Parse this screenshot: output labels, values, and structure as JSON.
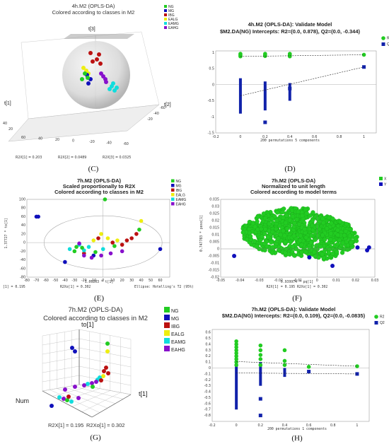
{
  "colors": {
    "NG": "#22cc22",
    "MG": "#1010bb",
    "IBG": "#bb1111",
    "EALG": "#eeee11",
    "EAMG": "#11dddd",
    "EAHG": "#8811cc",
    "R2": "#22cc22",
    "Q2": "#1122aa"
  },
  "classes": [
    "NG",
    "MG",
    "IBG",
    "EALG",
    "EAMG",
    "EAHG"
  ],
  "chart_data": [
    {
      "panel": "C",
      "type": "scatter",
      "title": "4h.M2 (OPLS-DA)",
      "subtitle": "Colored according to classes in M2",
      "axes": [
        "t[3]",
        "t[1]",
        "t[2]"
      ],
      "tick_labels_front": [
        "60",
        "40",
        "20",
        "0",
        "-20",
        "-40",
        "-60"
      ],
      "tick_labels_right": [
        "-20",
        "-40",
        "-60"
      ],
      "tick_labels_left": [
        "40",
        "20"
      ],
      "legend": [
        "NG",
        "MG",
        "IBG",
        "EALG",
        "EAMG",
        "EAHG"
      ],
      "footer": [
        "R2X[1] = 0.203",
        "R2X[2] = 0.0489",
        "R2X[3] = 0.0325"
      ],
      "caption": "(C)"
    },
    {
      "panel": "D",
      "type": "scatter",
      "title": "4h.M2 (OPLS-DA): Validate Model",
      "subtitle": "$M2.DA(NG) Intercepts: R2=(0.0, 0.878), Q2=(0.0, -0.344)",
      "xlim": [
        -0.2,
        1.1
      ],
      "ylim": [
        -1.5,
        1.05
      ],
      "xticks": [
        "-0.2",
        "0",
        "0.2",
        "0.4",
        "0.6",
        "0.8",
        "1"
      ],
      "yticks": [
        "1",
        "0.5",
        "0",
        "-0.5",
        "-1",
        "-1.5"
      ],
      "xlabel": "200 permutations 5 components",
      "legend": [
        "R2",
        "Q2"
      ],
      "R2_intercept_line": [
        [
          0,
          0.878
        ],
        [
          1,
          0.93
        ]
      ],
      "Q2_intercept_line": [
        [
          0,
          -0.344
        ],
        [
          1,
          0.55
        ]
      ],
      "R2_points": [
        [
          0,
          0.9
        ],
        [
          0,
          0.93
        ],
        [
          0,
          0.96
        ],
        [
          0,
          0.88
        ],
        [
          0.2,
          0.9
        ],
        [
          0.2,
          0.93
        ],
        [
          0.2,
          0.96
        ],
        [
          0.2,
          0.89
        ],
        [
          0.4,
          0.9
        ],
        [
          0.4,
          0.94
        ],
        [
          0.4,
          0.96
        ],
        [
          0.4,
          0.88
        ],
        [
          1,
          0.93
        ]
      ],
      "Q2_bars": [
        [
          0,
          -0.9,
          0.2
        ],
        [
          0.2,
          -0.8,
          0.1
        ],
        [
          0.4,
          -0.5,
          0.05
        ]
      ],
      "Q2_points": [
        [
          0.2,
          -1.17
        ],
        [
          0.4,
          -0.12
        ],
        [
          1,
          0.55
        ]
      ],
      "caption": "(D)"
    },
    {
      "panel": "E",
      "type": "scatter",
      "title": "7h.M2 (OPLS-DA)",
      "subtitle": "Scaled proportionally to R2X",
      "subtitle2": "Colored according to classes in M2",
      "xlim": [
        -80,
        70
      ],
      "ylim": [
        -80,
        100
      ],
      "xticks": [
        "-80",
        "-70",
        "-60",
        "-50",
        "-40",
        "-30",
        "-20",
        "-10",
        "0",
        "10",
        "20",
        "30",
        "40",
        "50",
        "60"
      ],
      "yticks": [
        "100",
        "80",
        "60",
        "40",
        "20",
        "0",
        "-20",
        "-40",
        "-60",
        "-80"
      ],
      "xlabel": "1.06203 * t[1]",
      "ylabel": "1.37727 * to[1]",
      "footer_left": "[1] = 0.195",
      "footer_mid": "R2Xo[1] = 0.302",
      "footer_right": "Ellipse: Hotelling's T2 (95%)",
      "legend": [
        "NG",
        "MG",
        "IBG",
        "EALG",
        "EAMG",
        "EAHG"
      ],
      "points": [
        [
          2,
          100,
          "NG"
        ],
        [
          -70,
          60,
          "MG"
        ],
        [
          -68,
          60,
          "MG"
        ],
        [
          -40,
          -45,
          "MG"
        ],
        [
          -10,
          -30,
          "MG"
        ],
        [
          60,
          -15,
          "MG"
        ],
        [
          -20,
          -25,
          "IBG"
        ],
        [
          25,
          5,
          "IBG"
        ],
        [
          30,
          10,
          "IBG"
        ],
        [
          35,
          20,
          "IBG"
        ],
        [
          -5,
          10,
          "IBG"
        ],
        [
          10,
          0,
          "IBG"
        ],
        [
          20,
          -5,
          "IBG"
        ],
        [
          40,
          50,
          "EALG"
        ],
        [
          -10,
          5,
          "EALG"
        ],
        [
          5,
          10,
          "EALG"
        ],
        [
          15,
          5,
          "EALG"
        ],
        [
          -2,
          20,
          "EALG"
        ],
        [
          -35,
          -15,
          "EAMG"
        ],
        [
          -25,
          -5,
          "EAMG"
        ],
        [
          -15,
          -10,
          "EAMG"
        ],
        [
          0,
          -15,
          "EAMG"
        ],
        [
          -20,
          -18,
          "EAMG"
        ],
        [
          -30,
          -20,
          "NG"
        ],
        [
          -22,
          -12,
          "NG"
        ],
        [
          -8,
          -22,
          "NG"
        ],
        [
          12,
          -8,
          "NG"
        ],
        [
          38,
          30,
          "NG"
        ],
        [
          -28,
          -10,
          "NG"
        ],
        [
          -12,
          -35,
          "EAHG"
        ],
        [
          -20,
          -30,
          "EAHG"
        ],
        [
          -2,
          -30,
          "EAHG"
        ],
        [
          8,
          -25,
          "EAHG"
        ],
        [
          -25,
          -2,
          "EAHG"
        ],
        [
          20,
          -20,
          "EAHG"
        ]
      ],
      "caption": "(E)"
    },
    {
      "panel": "F",
      "type": "scatter",
      "title": "7h.M2 (OPLS-DA)",
      "subtitle": "Normalized to unit length",
      "subtitle2": "Colored according to model terms",
      "xlim": [
        -0.05,
        0.03
      ],
      "ylim": [
        -0.02,
        0.035
      ],
      "xticks": [
        "-0.05",
        "-0.04",
        "-0.03",
        "-0.02",
        "-0.01",
        "0",
        "0.01",
        "0.02",
        "0.03"
      ],
      "yticks": [
        "0.035",
        "0.03",
        "0.025",
        "0.02",
        "0.015",
        "0.01",
        "0.005",
        "0",
        "-0.005",
        "-0.01",
        "-0.015",
        "-0.02"
      ],
      "xlabel": "0.939974 * pq[1]",
      "ylabel": "0.747783 * poso[1]",
      "footer": "R2X[1] = 0.195   R2Xo[1] = 0.302",
      "legend": [
        "X",
        "Y"
      ],
      "y_points": [
        [
          -0.043,
          -0.005
        ],
        [
          -0.004,
          -0.006
        ],
        [
          0.008,
          -0.012
        ],
        [
          0.021,
          0.001
        ],
        [
          0.026,
          -0.001
        ],
        [
          0.027,
          0.001
        ]
      ],
      "caption": "(F)"
    },
    {
      "panel": "G",
      "type": "scatter",
      "title": "7h.M2 (OPLS-DA)",
      "subtitle": "Colored according to classes in M2",
      "axes": [
        "to[1]",
        "Num",
        "t[1]"
      ],
      "legend": [
        "NG",
        "MG",
        "IBG",
        "EALG",
        "EAMG",
        "EAHG"
      ],
      "footer": [
        "R2X[1] = 0.195",
        "R2Xo[1] = 0.302"
      ],
      "caption": "(G)"
    },
    {
      "panel": "H",
      "type": "scatter",
      "title": "7h.M2 (OPLS-DA): Validate Model",
      "subtitle": "$M2.DA(NG) Intercepts: R2=(0.0, 0.109), Q2=(0.0, -0.0835)",
      "xlim": [
        -0.2,
        1.1
      ],
      "ylim": [
        -0.9,
        0.65
      ],
      "xticks": [
        "-0.2",
        "0",
        "0.2",
        "0.4",
        "0.6",
        "0.8",
        "1"
      ],
      "yticks": [
        "0.6",
        "0.5",
        "0.4",
        "0.3",
        "0.2",
        "0.1",
        "0",
        "-0.1",
        "-0.2",
        "-0.3",
        "-0.4",
        "-0.5",
        "-0.6",
        "-0.7",
        "-0.8"
      ],
      "xlabel": "200 permutations 1 components",
      "legend": [
        "R2",
        "Q2"
      ],
      "R2_intercept_line": [
        [
          0,
          0.109
        ],
        [
          1,
          0.03
        ]
      ],
      "Q2_intercept_line": [
        [
          0,
          -0.0835
        ],
        [
          1,
          -0.1
        ]
      ],
      "R2_points": [
        [
          0,
          0.45
        ],
        [
          0,
          0.4
        ],
        [
          0,
          0.35
        ],
        [
          0,
          0.3
        ],
        [
          0,
          0.25
        ],
        [
          0,
          0.2
        ],
        [
          0,
          0.15
        ],
        [
          0,
          0.1
        ],
        [
          0,
          0.05
        ],
        [
          0.2,
          0.38
        ],
        [
          0.2,
          0.3
        ],
        [
          0.2,
          0.22
        ],
        [
          0.2,
          0.15
        ],
        [
          0.2,
          0.05
        ],
        [
          0.4,
          0.3
        ],
        [
          0.4,
          0.12
        ],
        [
          0.4,
          0.05
        ],
        [
          0.6,
          0.02
        ],
        [
          1,
          0.03
        ]
      ],
      "Q2_bars": [
        [
          0,
          -0.7,
          0.3
        ],
        [
          0.2,
          -0.3,
          0.1
        ],
        [
          0.4,
          -0.15,
          0.0
        ]
      ],
      "Q2_points": [
        [
          0.2,
          -0.52
        ],
        [
          0.2,
          -0.8
        ],
        [
          0.6,
          -0.06
        ],
        [
          1,
          -0.1
        ]
      ],
      "caption": "(H)"
    }
  ]
}
